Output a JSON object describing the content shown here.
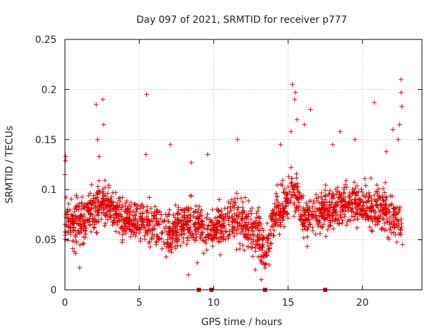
{
  "chart_data": {
    "type": "scatter",
    "title": "Day 097 of 2021, SRMTID for receiver p777",
    "xlabel": "GPS time / hours",
    "ylabel": "SRMTID / TECUs",
    "xlim": [
      0,
      24
    ],
    "ylim": [
      0,
      0.25
    ],
    "xticks": [
      0,
      5,
      10,
      15,
      20
    ],
    "xtick_labels": [
      "0",
      "5",
      "10",
      "15",
      "20"
    ],
    "yticks": [
      0,
      0.05,
      0.1,
      0.15,
      0.2,
      0.25
    ],
    "ytick_labels": [
      "0",
      "0.05",
      "0.1",
      "0.15",
      "0.2",
      "0.25"
    ],
    "grid": true,
    "marker": "plus",
    "color": "#e00000",
    "baseline_markers_x": [
      9.0,
      9.85,
      13.45,
      17.5
    ],
    "trend": {
      "x": [
        0,
        1,
        2,
        2.5,
        3,
        4,
        5,
        6,
        7,
        8,
        9,
        9.5,
        10,
        11,
        12,
        13,
        13.5,
        14,
        15,
        15.5,
        16,
        17,
        18,
        19,
        20,
        21,
        22,
        22.7
      ],
      "y": [
        0.065,
        0.07,
        0.08,
        0.09,
        0.082,
        0.072,
        0.068,
        0.065,
        0.055,
        0.065,
        0.07,
        0.05,
        0.06,
        0.07,
        0.065,
        0.055,
        0.035,
        0.07,
        0.09,
        0.1,
        0.075,
        0.075,
        0.08,
        0.085,
        0.085,
        0.08,
        0.075,
        0.065
      ]
    },
    "spread": 0.022,
    "peaks": [
      {
        "x": 2.1,
        "y": 0.185
      },
      {
        "x": 2.55,
        "y": 0.19
      },
      {
        "x": 2.6,
        "y": 0.165
      },
      {
        "x": 2.2,
        "y": 0.15
      },
      {
        "x": 2.3,
        "y": 0.133
      },
      {
        "x": 5.5,
        "y": 0.195
      },
      {
        "x": 5.45,
        "y": 0.135
      },
      {
        "x": 7.1,
        "y": 0.145
      },
      {
        "x": 8.5,
        "y": 0.127
      },
      {
        "x": 9.6,
        "y": 0.135
      },
      {
        "x": 11.6,
        "y": 0.15
      },
      {
        "x": 14.5,
        "y": 0.145
      },
      {
        "x": 15.3,
        "y": 0.205
      },
      {
        "x": 15.5,
        "y": 0.197
      },
      {
        "x": 15.45,
        "y": 0.19
      },
      {
        "x": 15.6,
        "y": 0.17
      },
      {
        "x": 15.2,
        "y": 0.158
      },
      {
        "x": 16.1,
        "y": 0.165
      },
      {
        "x": 16.5,
        "y": 0.18
      },
      {
        "x": 18.0,
        "y": 0.145
      },
      {
        "x": 18.5,
        "y": 0.158
      },
      {
        "x": 19.5,
        "y": 0.15
      },
      {
        "x": 20.8,
        "y": 0.187
      },
      {
        "x": 21.6,
        "y": 0.138
      },
      {
        "x": 22.05,
        "y": 0.16
      },
      {
        "x": 22.6,
        "y": 0.21
      },
      {
        "x": 22.6,
        "y": 0.197
      },
      {
        "x": 22.65,
        "y": 0.183
      },
      {
        "x": 22.5,
        "y": 0.165
      },
      {
        "x": 22.4,
        "y": 0.15
      },
      {
        "x": 0.05,
        "y": 0.133
      },
      {
        "x": 0.05,
        "y": 0.129
      },
      {
        "x": 0.0,
        "y": 0.115
      },
      {
        "x": 12.8,
        "y": 0.02
      },
      {
        "x": 13.2,
        "y": 0.01
      },
      {
        "x": 13.4,
        "y": 0.025
      },
      {
        "x": 8.9,
        "y": 0.027
      },
      {
        "x": 8.3,
        "y": 0.015
      },
      {
        "x": 1.0,
        "y": 0.022
      }
    ]
  }
}
